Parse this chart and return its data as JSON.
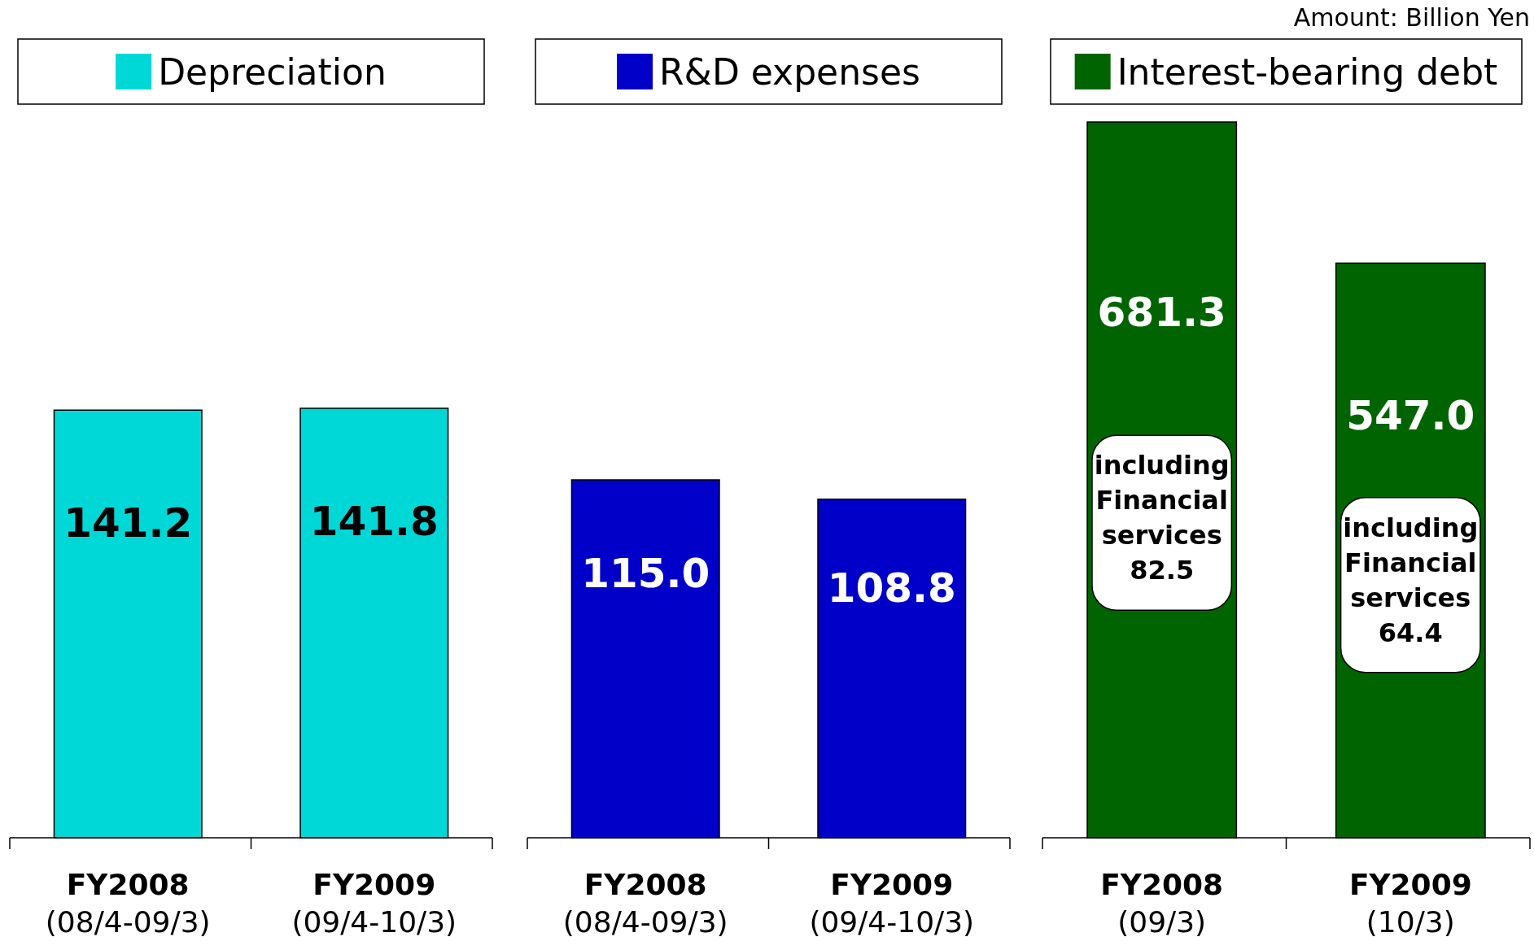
{
  "chart_data": [
    {
      "type": "bar",
      "categories": [
        "FY2008\n(08/4-09/3)",
        "FY2009\n(09/4-10/3)"
      ],
      "series": [
        {
          "name": "Depreciation",
          "color": "#00d8d8",
          "values": [
            141.2,
            141.8
          ],
          "value_labels": [
            "141.2",
            "141.8"
          ]
        }
      ],
      "legend": "top"
    },
    {
      "type": "bar",
      "categories": [
        "FY2008\n(08/4-09/3)",
        "FY2009\n(09/4-10/3)"
      ],
      "series": [
        {
          "name": "R&D expenses",
          "color": "#0000c8",
          "values": [
            115.0,
            108.8
          ],
          "value_labels": [
            "115.0",
            "108.8"
          ]
        }
      ],
      "legend": "top"
    },
    {
      "type": "bar",
      "categories": [
        "FY2008\n(09/3)",
        "FY2009\n(10/3)"
      ],
      "series": [
        {
          "name": "Interest-bearing debt",
          "color": "#006400",
          "values": [
            681.3,
            547.0
          ],
          "value_labels": [
            "681.3",
            "547.0"
          ]
        }
      ],
      "legend": "top",
      "annotations": [
        "Amount: Billion Yen",
        "including Financial services 82.5",
        "including Financial services 64.4"
      ]
    }
  ]
}
